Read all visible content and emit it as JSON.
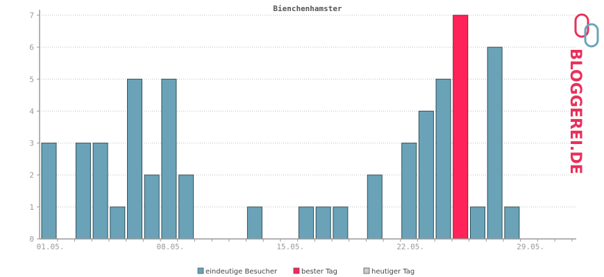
{
  "colors": {
    "bar": "#6aa3b8",
    "bar_stroke": "#2f4f5a",
    "best": "#ff2359",
    "best_stroke": "#8a1030",
    "today": "#cccccc",
    "grid": "#bbbbbb",
    "axis": "#999999"
  },
  "logo": {
    "text": "BLOGGEREI.DE"
  },
  "chart_data": {
    "type": "bar",
    "title": "Bienchenhamster",
    "categories": [
      "01.05.",
      "02.05.",
      "03.05.",
      "04.05.",
      "05.05.",
      "06.05.",
      "07.05.",
      "08.05.",
      "09.05.",
      "10.05.",
      "11.05.",
      "12.05.",
      "13.05.",
      "14.05.",
      "15.05.",
      "16.05.",
      "17.05.",
      "18.05.",
      "19.05.",
      "20.05.",
      "21.05.",
      "22.05.",
      "23.05.",
      "24.05.",
      "25.05.",
      "26.05.",
      "27.05.",
      "28.05.",
      "29.05.",
      "30.05.",
      "31.05."
    ],
    "x_tick_labels": [
      "01.05.",
      "08.05.",
      "15.05.",
      "22.05.",
      "29.05."
    ],
    "series": [
      {
        "name": "eindeutige Besucher",
        "values": [
          3,
          0,
          3,
          3,
          1,
          5,
          2,
          5,
          2,
          0,
          0,
          0,
          1,
          0,
          0,
          1,
          1,
          1,
          0,
          2,
          0,
          3,
          4,
          5,
          7,
          1,
          6,
          1,
          0,
          0,
          0
        ]
      }
    ],
    "best_day": "25.05.",
    "ylim": [
      0,
      7
    ],
    "yticks": [
      0,
      1,
      2,
      3,
      4,
      5,
      6,
      7
    ],
    "grid": true,
    "legend_position": "bottom-center",
    "legend": [
      {
        "label": "eindeutige Besucher",
        "color": "#6aa3b8"
      },
      {
        "label": "bester Tag",
        "color": "#ff2359"
      },
      {
        "label": "heutiger Tag",
        "color": "#cccccc"
      }
    ]
  }
}
